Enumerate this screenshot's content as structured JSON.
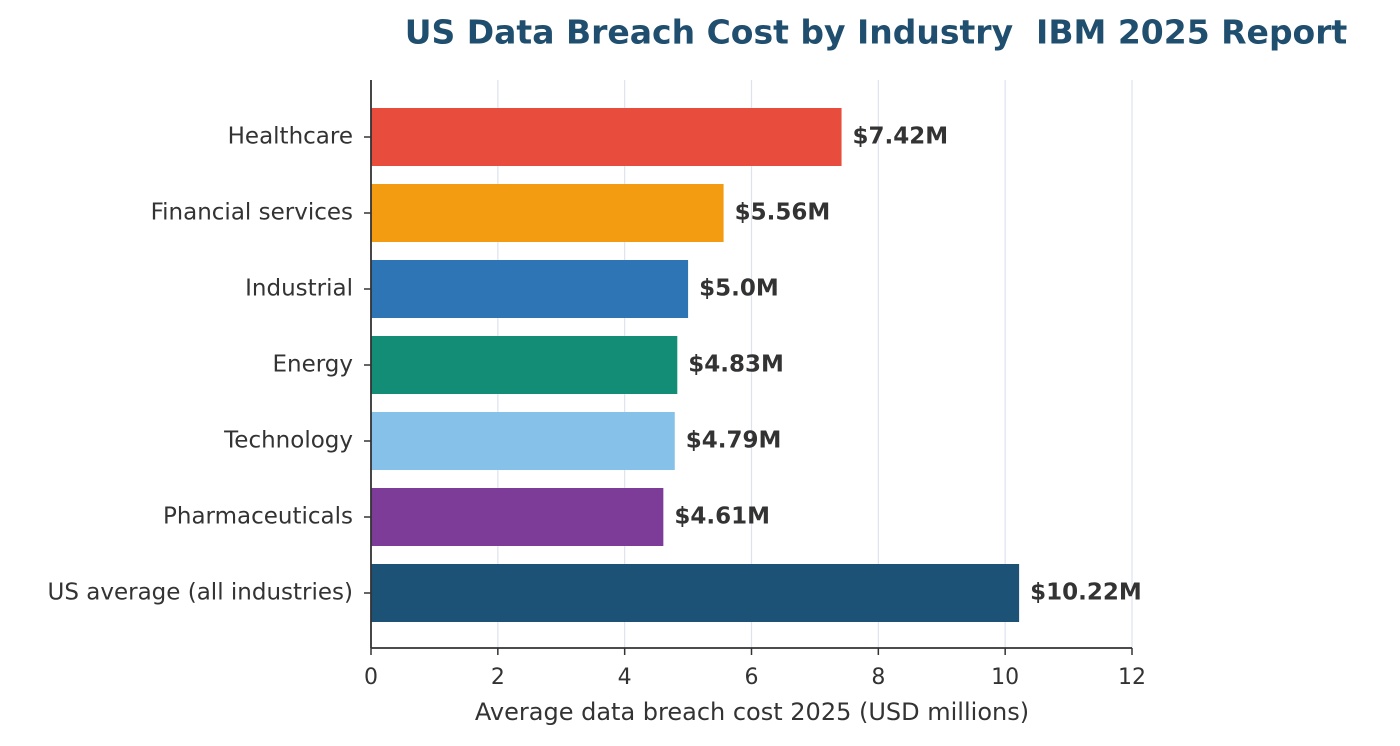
{
  "chart_data": {
    "type": "barh",
    "title": "US Data Breach Cost by Industry  IBM 2025 Report",
    "xlabel": "Average data breach cost 2025 (USD millions)",
    "categories": [
      "Healthcare",
      "Financial services",
      "Industrial",
      "Energy",
      "Technology",
      "Pharmaceuticals",
      "US average (all industries)"
    ],
    "values": [
      7.42,
      5.56,
      5.0,
      4.83,
      4.79,
      4.61,
      10.22
    ],
    "value_labels": [
      "$7.42M",
      "$5.56M",
      "$5.0M",
      "$4.83M",
      "$4.79M",
      "$4.61M",
      "$10.22M"
    ],
    "colors": [
      "#e74c3c",
      "#f39c12",
      "#2e75b6",
      "#138d75",
      "#85c1e9",
      "#7d3c98",
      "#1b5276"
    ],
    "xlim": [
      0,
      12
    ],
    "xticks": [
      0,
      2,
      4,
      6,
      8,
      10,
      12
    ],
    "grid": true
  }
}
